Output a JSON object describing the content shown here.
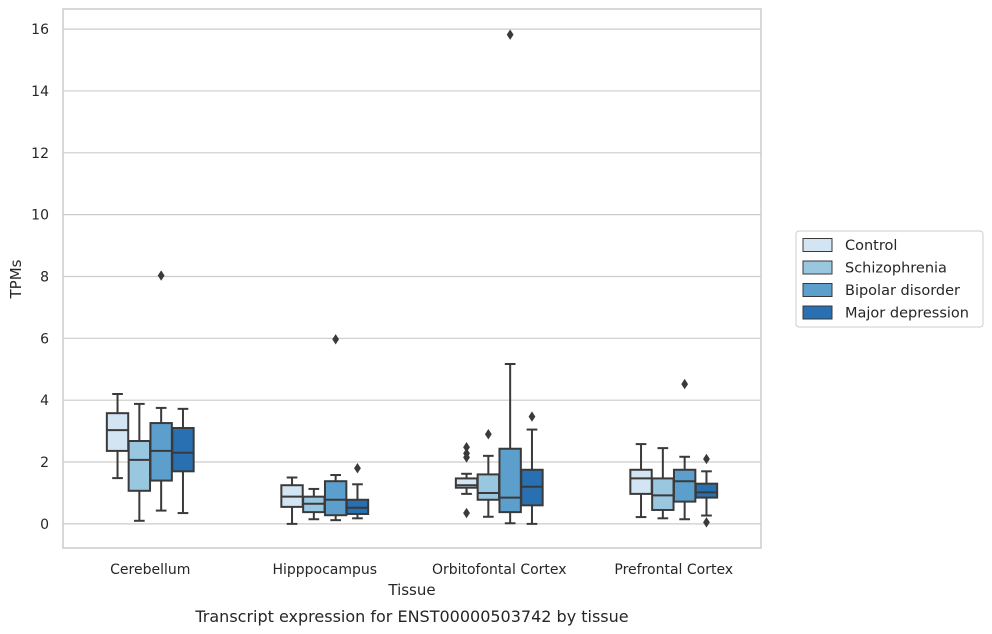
{
  "chart_data": {
    "type": "box",
    "caption": "Transcript expression for ENST00000503742 by tissue",
    "xlabel": "Tissue",
    "ylabel": "TPMs",
    "ylim": [
      -0.78,
      16.65
    ],
    "yticks": [
      0,
      2,
      4,
      6,
      8,
      10,
      12,
      14,
      16
    ],
    "grid": "horizontal",
    "legend_position": "right",
    "categories": [
      "Cerebellum",
      "Hipppocampus",
      "Orbitofontal Cortex",
      "Prefrontal Cortex"
    ],
    "series": [
      {
        "name": "Control",
        "color": "#d3e4f3",
        "boxes": [
          {
            "whislo": 1.48,
            "q1": 2.36,
            "med": 3.03,
            "q3": 3.58,
            "whishi": 4.2,
            "fliers": []
          },
          {
            "whislo": 0.0,
            "q1": 0.55,
            "med": 0.88,
            "q3": 1.25,
            "whishi": 1.5,
            "fliers": []
          },
          {
            "whislo": 0.97,
            "q1": 1.17,
            "med": 1.25,
            "q3": 1.47,
            "whishi": 1.62,
            "fliers": [
              0.35,
              2.15,
              2.28,
              2.48
            ]
          },
          {
            "whislo": 0.22,
            "q1": 0.97,
            "med": 1.47,
            "q3": 1.75,
            "whishi": 2.58,
            "fliers": []
          }
        ]
      },
      {
        "name": "Schizophrenia",
        "color": "#9ac7e0",
        "boxes": [
          {
            "whislo": 0.1,
            "q1": 1.07,
            "med": 2.07,
            "q3": 2.68,
            "whishi": 3.88,
            "fliers": []
          },
          {
            "whislo": 0.15,
            "q1": 0.38,
            "med": 0.65,
            "q3": 0.88,
            "whishi": 1.13,
            "fliers": []
          },
          {
            "whislo": 0.23,
            "q1": 0.78,
            "med": 1.0,
            "q3": 1.6,
            "whishi": 2.2,
            "fliers": [
              2.9
            ]
          },
          {
            "whislo": 0.18,
            "q1": 0.45,
            "med": 0.92,
            "q3": 1.47,
            "whishi": 2.45,
            "fliers": []
          }
        ]
      },
      {
        "name": "Bipolar disorder",
        "color": "#5c9fcc",
        "boxes": [
          {
            "whislo": 0.43,
            "q1": 1.4,
            "med": 2.36,
            "q3": 3.26,
            "whishi": 3.75,
            "fliers": [
              8.03
            ]
          },
          {
            "whislo": 0.12,
            "q1": 0.28,
            "med": 0.78,
            "q3": 1.38,
            "whishi": 1.58,
            "fliers": [
              5.97
            ]
          },
          {
            "whislo": 0.02,
            "q1": 0.38,
            "med": 0.85,
            "q3": 2.43,
            "whishi": 5.17,
            "fliers": [
              15.82
            ]
          },
          {
            "whislo": 0.15,
            "q1": 0.72,
            "med": 1.38,
            "q3": 1.75,
            "whishi": 2.17,
            "fliers": [
              4.52
            ]
          }
        ]
      },
      {
        "name": "Major depression",
        "color": "#2870b1",
        "boxes": [
          {
            "whislo": 0.35,
            "q1": 1.7,
            "med": 2.3,
            "q3": 3.1,
            "whishi": 3.72,
            "fliers": []
          },
          {
            "whislo": 0.18,
            "q1": 0.32,
            "med": 0.52,
            "q3": 0.78,
            "whishi": 1.28,
            "fliers": [
              1.8
            ]
          },
          {
            "whislo": 0.0,
            "q1": 0.6,
            "med": 1.2,
            "q3": 1.75,
            "whishi": 3.05,
            "fliers": [
              3.47
            ]
          },
          {
            "whislo": 0.27,
            "q1": 0.85,
            "med": 1.02,
            "q3": 1.3,
            "whishi": 1.7,
            "fliers": [
              0.05,
              2.1
            ]
          }
        ]
      }
    ]
  }
}
